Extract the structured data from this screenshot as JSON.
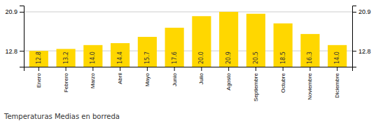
{
  "chart_data": {
    "type": "bar",
    "title": "Temperaturas Medias en borreda",
    "categories": [
      "Enero",
      "Febrero",
      "Marzo",
      "Abril",
      "Mayo",
      "Junio",
      "Julio",
      "Agosto",
      "Septiembre",
      "Octubre",
      "Noviembre",
      "Diciembre"
    ],
    "values": [
      12.8,
      13.2,
      14.0,
      14.4,
      15.7,
      17.6,
      20.0,
      20.9,
      20.5,
      18.5,
      16.3,
      14.0
    ],
    "value_labels": [
      "12.8",
      "13.2",
      "14.0",
      "14.4",
      "15.7",
      "17.6",
      "20.0",
      "20.9",
      "20.5",
      "18.5",
      "16.3",
      "14.0"
    ],
    "data_labels": true,
    "color": "#FFD700",
    "ylim": [
      9.5,
      22.2
    ],
    "yticks": [
      12.8,
      20.9
    ],
    "y2lim": [
      9.5,
      22.2
    ],
    "y2ticks": [
      12.8,
      20.9
    ],
    "grid": true
  }
}
